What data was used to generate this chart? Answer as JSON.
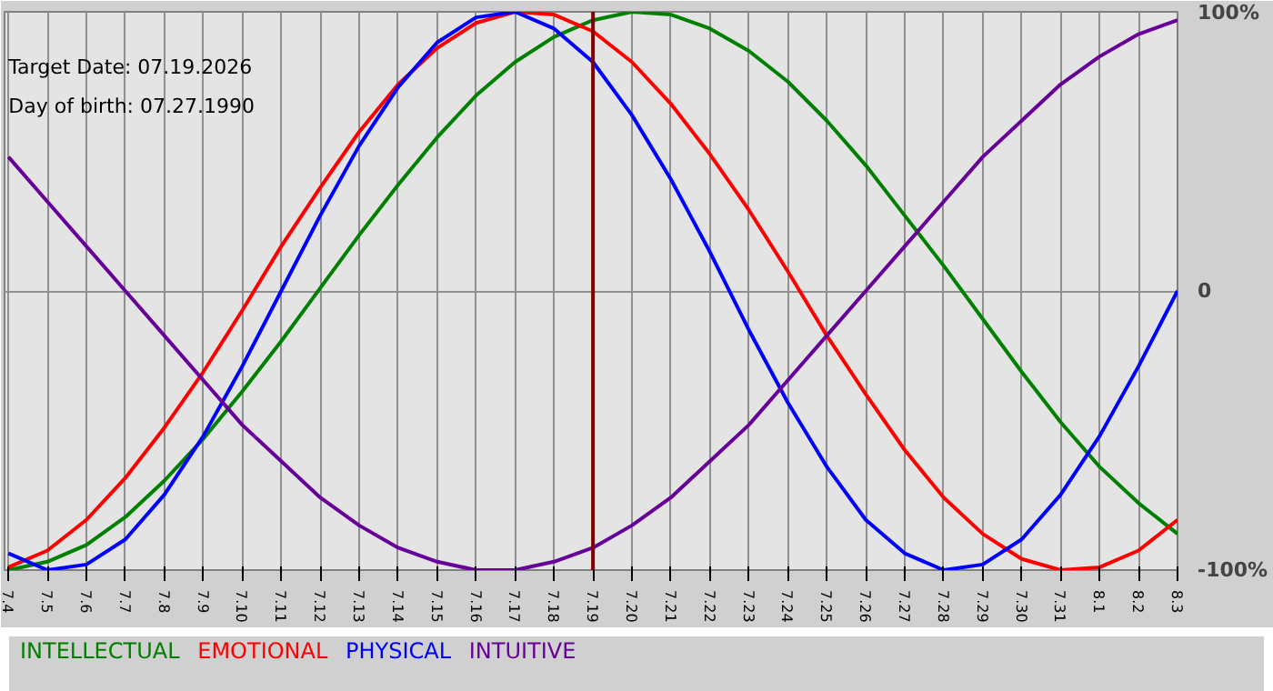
{
  "chart_data": {
    "type": "line",
    "categories": [
      "7.4",
      "7.5",
      "7.6",
      "7.7",
      "7.8",
      "7.9",
      "7.10",
      "7.11",
      "7.12",
      "7.13",
      "7.14",
      "7.15",
      "7.16",
      "7.17",
      "7.18",
      "7.19",
      "7.20",
      "7.21",
      "7.22",
      "7.23",
      "7.24",
      "7.25",
      "7.26",
      "7.27",
      "7.28",
      "7.29",
      "7.30",
      "7.31",
      "8.1",
      "8.2",
      "8.3"
    ],
    "series": [
      {
        "name": "INTELLECTUAL",
        "color": "#008000",
        "values": [
          -100,
          -97,
          -91,
          -81,
          -68,
          -53,
          -36,
          -18,
          1,
          20,
          38,
          55,
          70,
          82,
          91,
          97,
          100,
          99,
          94,
          86,
          75,
          61,
          45,
          27,
          9,
          -10,
          -29,
          -47,
          -63,
          -76,
          -87
        ]
      },
      {
        "name": "EMOTIONAL",
        "color": "#ff0000",
        "values": [
          -99,
          -93,
          -82,
          -67,
          -49,
          -29,
          -7,
          16,
          37,
          57,
          74,
          87,
          96,
          100,
          99,
          93,
          82,
          67,
          49,
          29,
          7,
          -16,
          -37,
          -57,
          -74,
          -87,
          -96,
          -100,
          -99,
          -93,
          -82
        ]
      },
      {
        "name": "PHYSICAL",
        "color": "#0000ff",
        "values": [
          -94,
          -100,
          -98,
          -89,
          -73,
          -52,
          -27,
          0,
          27,
          52,
          73,
          89,
          98,
          100,
          94,
          82,
          63,
          40,
          14,
          -14,
          -40,
          -63,
          -82,
          -94,
          -100,
          -98,
          -89,
          -73,
          -52,
          -27,
          0
        ]
      },
      {
        "name": "INTUITIVE",
        "color": "#660099",
        "values": [
          48,
          32,
          16,
          0,
          -16,
          -32,
          -48,
          -61,
          -74,
          -84,
          -92,
          -97,
          -100,
          -100,
          -97,
          -92,
          -84,
          -74,
          -61,
          -48,
          -32,
          -16,
          0,
          16,
          32,
          48,
          61,
          74,
          84,
          92,
          97
        ]
      }
    ],
    "ylim": [
      -100,
      100
    ],
    "yticks": [
      {
        "value": 100,
        "label": "100%"
      },
      0,
      {
        "value": -100,
        "label": "-100%"
      }
    ],
    "ref_lines": [
      {
        "axis": "x",
        "value": "7.19",
        "color": "#800000"
      }
    ],
    "annotations": [
      "Target Date: 07.19.2026",
      "Day of birth: 07.27.1990"
    ],
    "grid": true,
    "legend": "bottom"
  }
}
